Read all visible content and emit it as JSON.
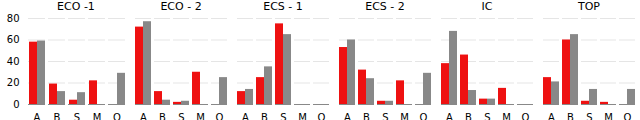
{
  "chart_data": [
    {
      "type": "bar",
      "title": "ECO -1",
      "categories": [
        "A",
        "B",
        "S",
        "M",
        "O"
      ],
      "series": [
        {
          "color": "#ee1111",
          "values": [
            58,
            19,
            4,
            22,
            0
          ]
        },
        {
          "color": "#888888",
          "values": [
            59,
            12,
            11,
            0,
            29
          ]
        }
      ],
      "ylim": [
        0,
        80
      ],
      "yticks": [
        0,
        20,
        40,
        60,
        80
      ],
      "grid": true
    },
    {
      "type": "bar",
      "title": "ECO - 2",
      "categories": [
        "A",
        "B",
        "S",
        "M",
        "O"
      ],
      "series": [
        {
          "color": "#ee1111",
          "values": [
            72,
            12,
            2,
            30,
            0
          ]
        },
        {
          "color": "#888888",
          "values": [
            77,
            4,
            3,
            0,
            25
          ]
        }
      ],
      "ylim": [
        0,
        80
      ],
      "yticks": [
        0,
        20,
        40,
        60,
        80
      ],
      "grid": true,
      "tick_labels": "x"
    },
    {
      "type": "bar",
      "title": "ECS - 1",
      "categories": [
        "A",
        "B",
        "S",
        "M",
        "O"
      ],
      "series": [
        {
          "color": "#ee1111",
          "values": [
            12,
            25,
            75,
            0,
            0
          ]
        },
        {
          "color": "#888888",
          "values": [
            14,
            35,
            65,
            0,
            0
          ]
        }
      ],
      "ylim": [
        0,
        80
      ],
      "yticks": [
        0,
        20,
        40,
        60,
        80
      ],
      "grid": true,
      "tick_labels": "x"
    },
    {
      "type": "bar",
      "title": "ECS - 2",
      "categories": [
        "A",
        "B",
        "S",
        "M",
        "O"
      ],
      "series": [
        {
          "color": "#ee1111",
          "values": [
            53,
            32,
            3,
            22,
            0
          ]
        },
        {
          "color": "#888888",
          "values": [
            60,
            24,
            3,
            0,
            29
          ]
        }
      ],
      "ylim": [
        0,
        80
      ],
      "yticks": [
        0,
        20,
        40,
        60,
        80
      ],
      "grid": true,
      "tick_labels": "x"
    },
    {
      "type": "bar",
      "title": "IC",
      "categories": [
        "A",
        "B",
        "S",
        "M",
        "O"
      ],
      "series": [
        {
          "color": "#ee1111",
          "values": [
            38,
            46,
            5,
            15,
            0
          ]
        },
        {
          "color": "#888888",
          "values": [
            68,
            13,
            5,
            0,
            0
          ]
        }
      ],
      "ylim": [
        0,
        80
      ],
      "yticks": [
        0,
        20,
        40,
        60,
        80
      ],
      "grid": true,
      "tick_labels": "x"
    },
    {
      "type": "bar",
      "title": "TOP",
      "categories": [
        "A",
        "B",
        "S",
        "M",
        "O"
      ],
      "series": [
        {
          "color": "#ee1111",
          "values": [
            25,
            60,
            3,
            2,
            0
          ]
        },
        {
          "color": "#888888",
          "values": [
            21,
            65,
            14,
            0,
            14
          ]
        }
      ],
      "ylim": [
        0,
        80
      ],
      "yticks": [
        0,
        20,
        40,
        60,
        80
      ],
      "grid": true,
      "tick_labels": "x"
    }
  ]
}
